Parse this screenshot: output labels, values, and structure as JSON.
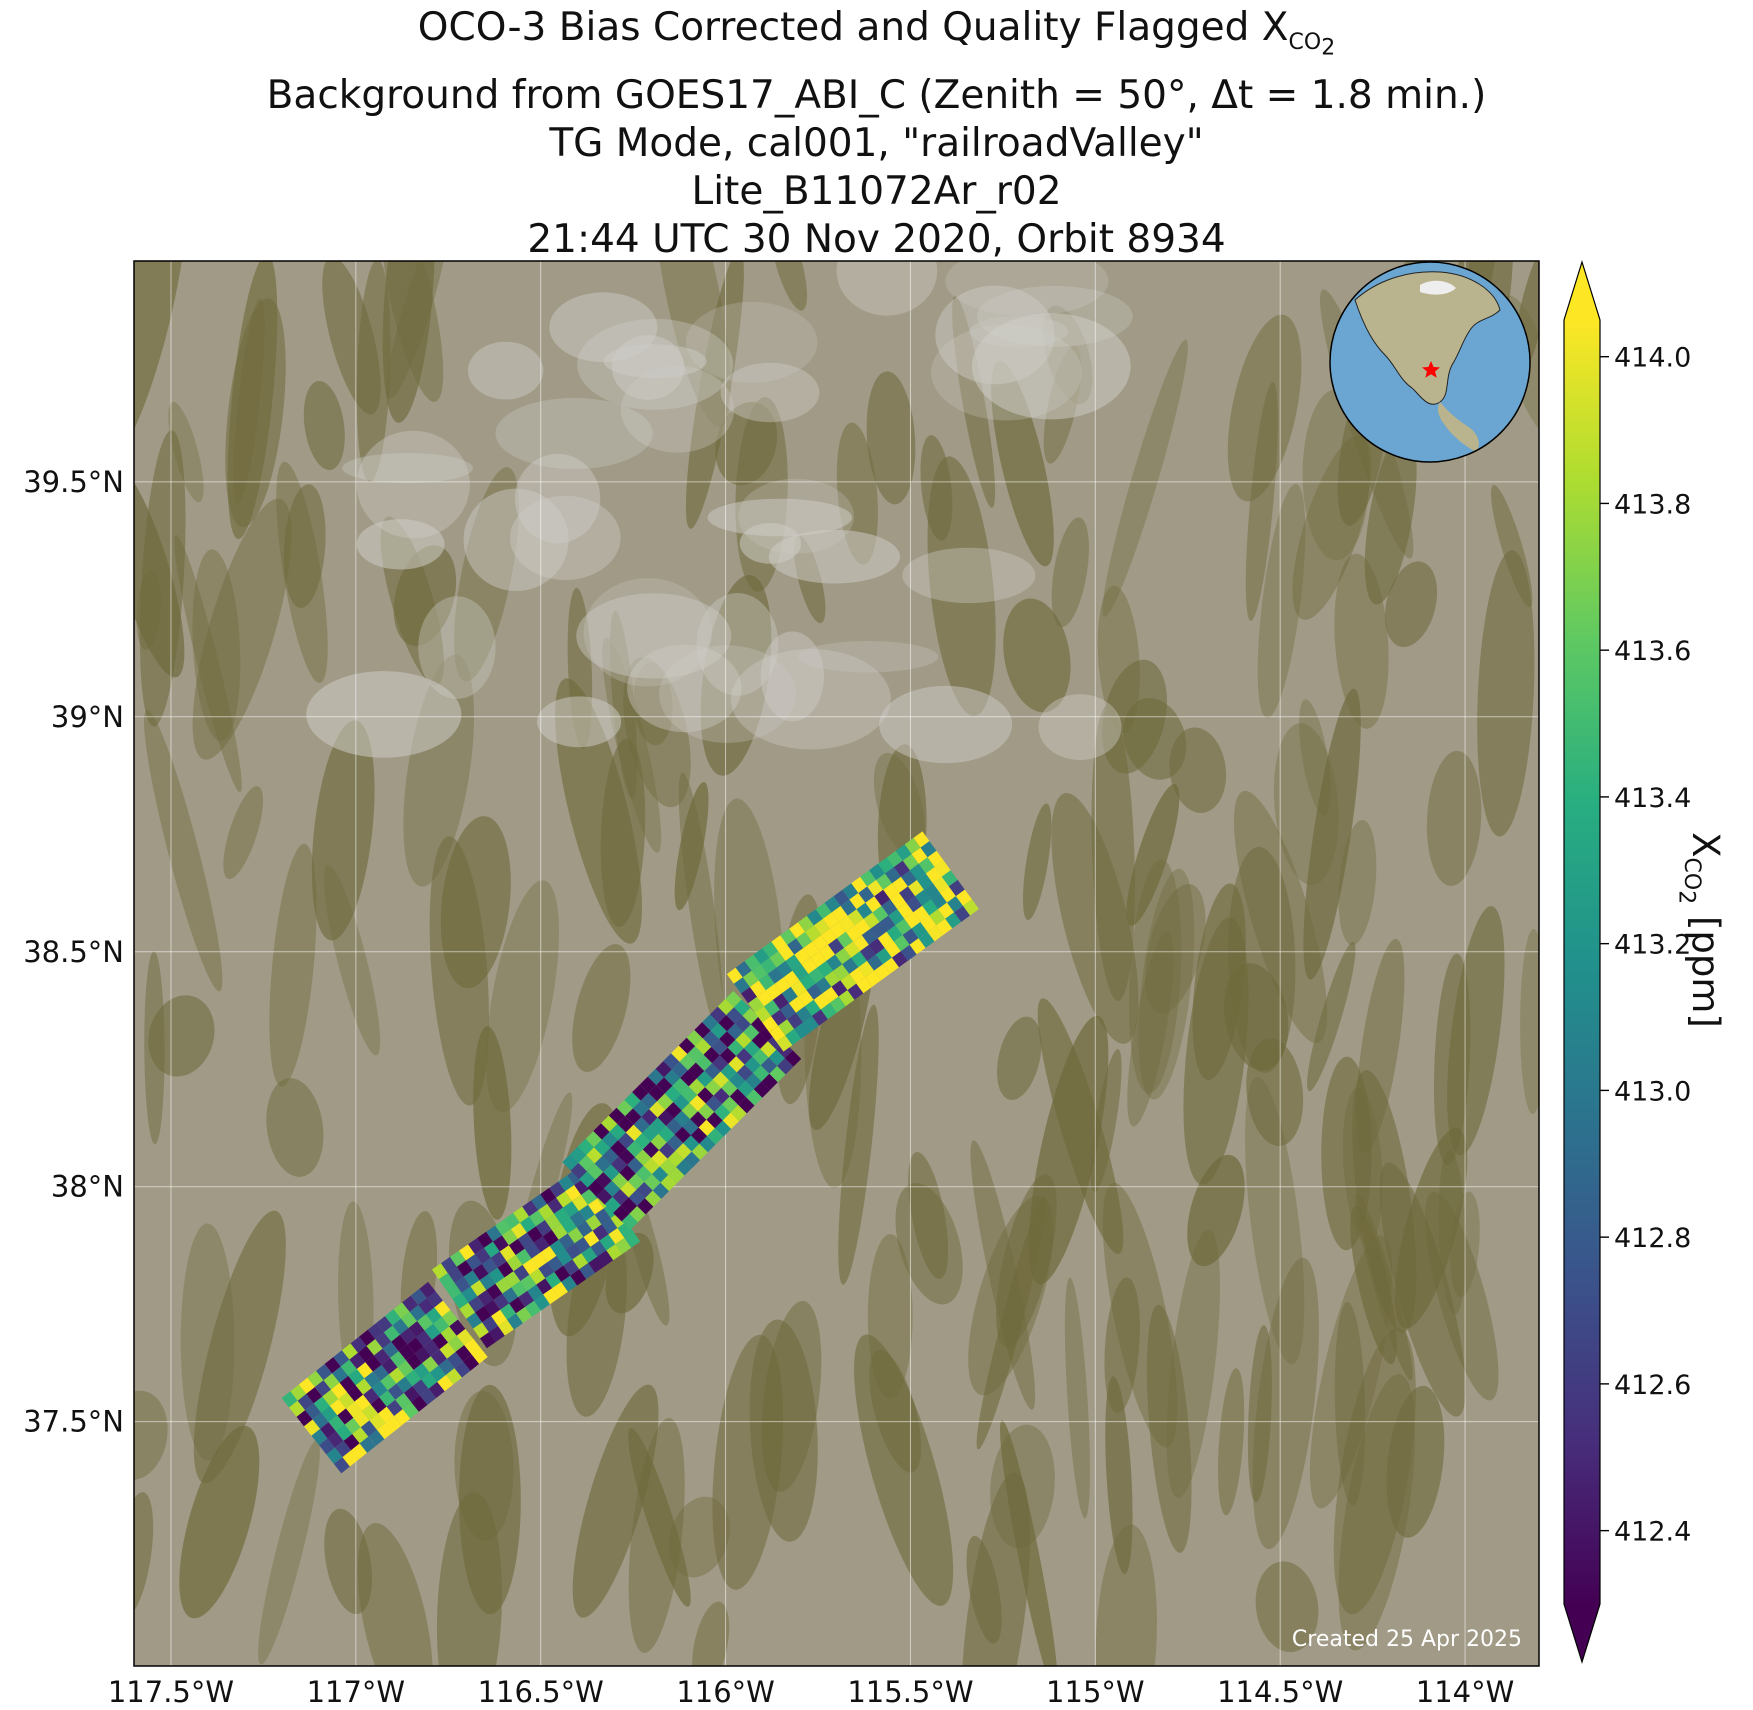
{
  "title": {
    "line1_prefix": "OCO-3 Bias Corrected and Quality Flagged X",
    "line1_sub": "CO",
    "line1_subsub": "2",
    "line2": "Background from GOES17_ABI_C (Zenith = 50°, Δt =  1.8 min.)",
    "line3": "TG Mode, cal001, \"railroadValley\"",
    "line4": "Lite_B11072Ar_r02",
    "line5": "21:44 UTC 30 Nov 2020, Orbit 8934"
  },
  "map": {
    "lon_range": [
      -117.6,
      -113.8
    ],
    "lat_range": [
      36.98,
      39.97
    ],
    "x_ticks": [
      {
        "value": -117.5,
        "label": "117.5°W"
      },
      {
        "value": -117.0,
        "label": "117°W"
      },
      {
        "value": -116.5,
        "label": "116.5°W"
      },
      {
        "value": -116.0,
        "label": "116°W"
      },
      {
        "value": -115.5,
        "label": "115.5°W"
      },
      {
        "value": -115.0,
        "label": "115°W"
      },
      {
        "value": -114.5,
        "label": "114.5°W"
      },
      {
        "value": -114.0,
        "label": "114°W"
      }
    ],
    "y_ticks": [
      {
        "value": 37.5,
        "label": "37.5°N"
      },
      {
        "value": 38.0,
        "label": "38°N"
      },
      {
        "value": 38.5,
        "label": "38.5°N"
      },
      {
        "value": 39.0,
        "label": "39°N"
      },
      {
        "value": 39.5,
        "label": "39.5°N"
      }
    ],
    "background_colors": {
      "desert": "#a09a86",
      "ridges": "#6f6a3c",
      "clouds": "#cfcdc8"
    },
    "grid": true,
    "inset_globe": {
      "ocean_color": "#6aa6d1",
      "land_color": "#b9b38e",
      "site_marker_color": "#ff0000"
    }
  },
  "swath": {
    "value_range": [
      412.3,
      414.05
    ],
    "strips": [
      {
        "start": [
          -117.12,
          37.47
        ],
        "end": [
          -116.72,
          37.72
        ]
      },
      {
        "start": [
          -116.72,
          37.74
        ],
        "end": [
          -116.3,
          37.97
        ]
      },
      {
        "start": [
          -116.35,
          37.98
        ],
        "end": [
          -115.88,
          38.35
        ]
      },
      {
        "start": [
          -115.92,
          38.37
        ],
        "end": [
          -115.38,
          38.68
        ]
      }
    ],
    "mean_values": [
      413.15,
      413.1,
      412.95,
      413.55
    ]
  },
  "colorbar": {
    "title_prefix": "X",
    "title_sub": "CO",
    "title_subsub": "2",
    "title_suffix": " [ppm]",
    "range": [
      412.3,
      414.05
    ],
    "ticks": [
      {
        "value": 412.4,
        "label": "412.4"
      },
      {
        "value": 412.6,
        "label": "412.6"
      },
      {
        "value": 412.8,
        "label": "412.8"
      },
      {
        "value": 413.0,
        "label": "413.0"
      },
      {
        "value": 413.2,
        "label": "413.2"
      },
      {
        "value": 413.4,
        "label": "413.4"
      },
      {
        "value": 413.6,
        "label": "413.6"
      },
      {
        "value": 413.8,
        "label": "413.8"
      },
      {
        "value": 414.0,
        "label": "414.0"
      }
    ],
    "colormap": "viridis",
    "extend": "both"
  },
  "created_text": "Created 25 Apr 2025"
}
